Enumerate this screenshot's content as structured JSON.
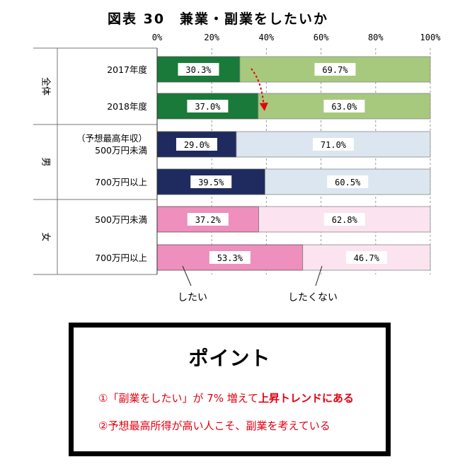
{
  "chart_data": {
    "type": "bar",
    "stacked": true,
    "orientation": "horizontal",
    "title": "図表 30　兼業・副業をしたいか",
    "x_ticks": [
      "0%",
      "20%",
      "40%",
      "60%",
      "80%",
      "100%"
    ],
    "xlim": [
      0,
      100
    ],
    "grid": true,
    "groups": [
      {
        "label": "全体",
        "rows": [
          {
            "label": "2017年度",
            "want": 30.3,
            "want_label": "30.3%",
            "not_want": 69.7,
            "not_want_label": "69.7%"
          },
          {
            "label": "2018年度",
            "want": 37.0,
            "want_label": "37.0%",
            "not_want": 63.0,
            "not_want_label": "63.0%"
          }
        ]
      },
      {
        "label": "男",
        "rows": [
          {
            "label": "（予想最高年収）",
            "label2": "500万円未満",
            "want": 29.0,
            "want_label": "29.0%",
            "not_want": 71.0,
            "not_want_label": "71.0%"
          },
          {
            "label": "700万円以上",
            "want": 39.5,
            "want_label": "39.5%",
            "not_want": 60.5,
            "not_want_label": "60.5%"
          }
        ]
      },
      {
        "label": "女",
        "rows": [
          {
            "label": "500万円未満",
            "want": 37.2,
            "want_label": "37.2%",
            "not_want": 62.8,
            "not_want_label": "62.8%"
          },
          {
            "label": "700万円以上",
            "want": 53.3,
            "want_label": "53.3%",
            "not_want": 46.7,
            "not_want_label": "46.7%"
          }
        ]
      }
    ],
    "annotations": {
      "want": "したい",
      "not_want": "したくない"
    },
    "colors": {
      "overall_want": "#1a7a3a",
      "overall_not": "#a7c97d",
      "male_want": "#1f2b5e",
      "male_not": "#dce6f0",
      "female_want": "#ee8fbd",
      "female_not": "#fbe3ef",
      "arrow": "#e60012"
    }
  },
  "point": {
    "title": "ポイント",
    "line1_a": "①「副業をしたい」が 7% 増えて",
    "line1_b": "上昇トレンドにある",
    "line2": "②予想最高所得が高い人こそ、副業を考えている"
  }
}
